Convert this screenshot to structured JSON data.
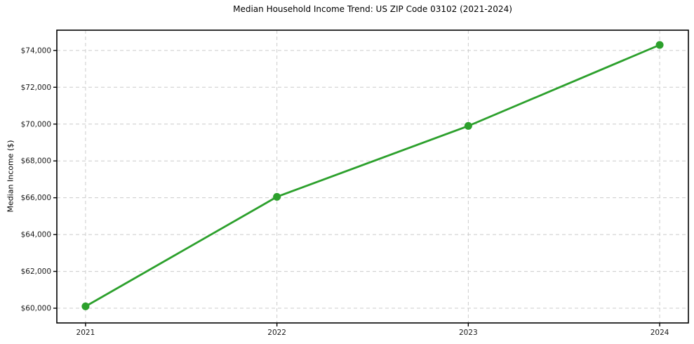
{
  "chart_data": {
    "type": "line",
    "title": "Median Household Income Trend: US ZIP Code 03102 (2021-2024)",
    "xlabel": "",
    "ylabel": "Median Income ($)",
    "x": [
      2021,
      2022,
      2023,
      2024
    ],
    "x_tick_labels": [
      "2021",
      "2022",
      "2023",
      "2024"
    ],
    "series": [
      {
        "name": "Median Household Income",
        "values": [
          60100,
          66050,
          69900,
          74300
        ]
      }
    ],
    "y_ticks": [
      60000,
      62000,
      64000,
      66000,
      68000,
      70000,
      72000,
      74000
    ],
    "y_tick_labels": [
      "$60,000",
      "$62,000",
      "$64,000",
      "$66,000",
      "$68,000",
      "$70,000",
      "$72,000",
      "$74,000"
    ],
    "xlim": [
      2020.85,
      2024.15
    ],
    "ylim": [
      59200,
      75100
    ],
    "grid": true,
    "grid_style": "dashed",
    "legend_position": "none",
    "colors": {
      "line": "#2ca02c",
      "marker": "#2ca02c",
      "grid": "#cccccc",
      "spine": "#000000",
      "tick_text": "#1a1a1a",
      "background": "#ffffff"
    }
  }
}
